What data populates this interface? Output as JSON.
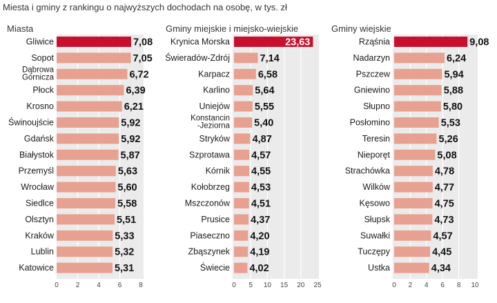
{
  "title": "Miesta i gminy z rankingu o najwyższych dochodach na osobę, w tys. zł",
  "colors": {
    "highlight": "#c8102e",
    "bar": "#e8a191",
    "panel": "#ebebeb",
    "grid": "#ffffff"
  },
  "chart_data": [
    {
      "type": "bar",
      "orientation": "horizontal",
      "subtitle": "Miasta",
      "categories": [
        "Gliwice",
        "Sopot",
        "Dąbrowa\nGórnicza",
        "Płock",
        "Krosno",
        "Świnoujście",
        "Gdańsk",
        "Białystok",
        "Przemyśl",
        "Wrocław",
        "Siedlce",
        "Olsztyn",
        "Kraków",
        "Lublin",
        "Katowice"
      ],
      "values": [
        7.08,
        7.05,
        6.72,
        6.39,
        6.21,
        5.92,
        5.92,
        5.87,
        5.63,
        5.6,
        5.58,
        5.51,
        5.33,
        5.32,
        5.31
      ],
      "labels": [
        "7,08",
        "7,05",
        "6,72",
        "6,39",
        "6,21",
        "5,92",
        "5,92",
        "5,87",
        "5,63",
        "5,60",
        "5,58",
        "5,51",
        "5,33",
        "5,32",
        "5,31"
      ],
      "xlim": [
        0,
        8
      ],
      "ticks": [
        0,
        2,
        4,
        6,
        8
      ],
      "highlight_index": 0
    },
    {
      "type": "bar",
      "orientation": "horizontal",
      "subtitle": "Gminy miejskie i miejsko-wiejskie",
      "categories": [
        "Krynica Morska",
        "Świeradów-Zdrój",
        "Karpacz",
        "Karlino",
        "Uniejów",
        "Konstancin\n-Jeziorna",
        "Stryków",
        "Szprotawa",
        "Kórnik",
        "Kołobrzeg",
        "Mszczonów",
        "Prusice",
        "Piaseczno",
        "Zbąszynek",
        "Świecie"
      ],
      "values": [
        23.63,
        7.14,
        6.58,
        5.64,
        5.55,
        5.4,
        4.87,
        4.57,
        4.55,
        4.53,
        4.51,
        4.37,
        4.2,
        4.19,
        4.02
      ],
      "labels": [
        "23,63",
        "7,14",
        "6,58",
        "5,64",
        "5,55",
        "5,40",
        "4,87",
        "4,57",
        "4,55",
        "4,53",
        "4,51",
        "4,37",
        "4,20",
        "4,19",
        "4,02"
      ],
      "xlim": [
        0,
        25
      ],
      "ticks": [
        0,
        5,
        10,
        15,
        20,
        25
      ],
      "highlight_index": 0
    },
    {
      "type": "bar",
      "orientation": "horizontal",
      "subtitle": "Gminy wiejskie",
      "categories": [
        "Rząśnia",
        "Nadarzyn",
        "Pszczew",
        "Gniewino",
        "Słupno",
        "Posłomino",
        "Teresin",
        "Nieporęt",
        "Strachówka",
        "Wilków",
        "Kęsowo",
        "Słupsk",
        "Suwałki",
        "Tuczępy",
        "Ustka"
      ],
      "values": [
        9.08,
        6.24,
        5.94,
        5.88,
        5.8,
        5.53,
        5.26,
        5.08,
        4.78,
        4.77,
        4.75,
        4.73,
        4.57,
        4.45,
        4.34
      ],
      "labels": [
        "9,08",
        "6,24",
        "5,94",
        "5,88",
        "5,80",
        "5,53",
        "5,26",
        "5,08",
        "4,78",
        "4,77",
        "4,75",
        "4,73",
        "4,57",
        "4,45",
        "4,34"
      ],
      "xlim": [
        0,
        10
      ],
      "ticks": [
        0,
        2,
        4,
        6,
        8,
        10
      ],
      "highlight_index": 0
    }
  ]
}
